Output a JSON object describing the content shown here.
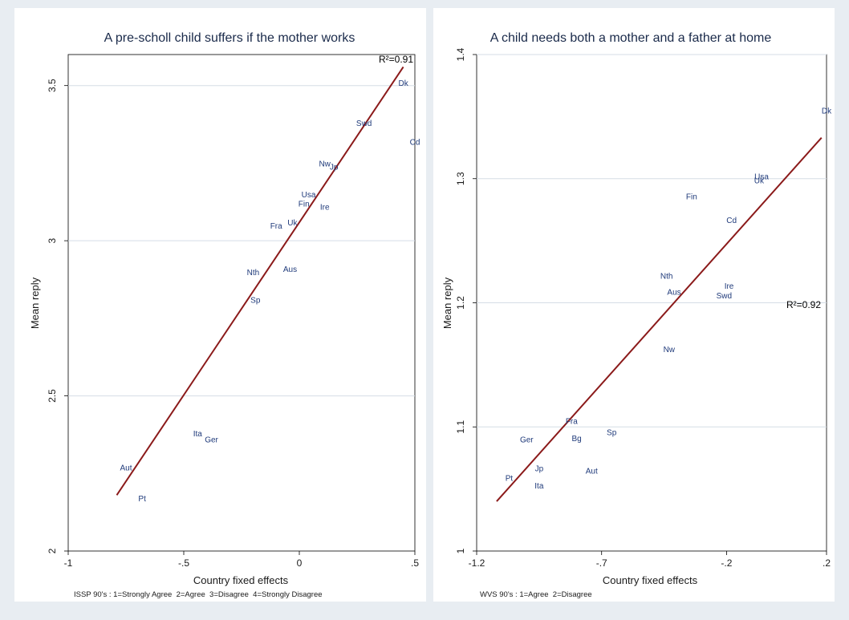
{
  "chart_data": [
    {
      "type": "scatter",
      "title": "A pre-scholl child suffers if the mother works",
      "xlabel": "Country fixed effects",
      "ylabel": "Mean reply",
      "note": "ISSP 90's : 1=Strongly Agree  2=Agree  3=Disagree  4=Strongly Disagree",
      "r2_label": "R²=0.91",
      "xlim": [
        -1.0,
        0.5
      ],
      "ylim": [
        2.0,
        3.6
      ],
      "xticks": [
        {
          "v": -1,
          "label": "-1"
        },
        {
          "v": -0.5,
          "label": "-.5"
        },
        {
          "v": 0,
          "label": "0"
        },
        {
          "v": 0.5,
          "label": ".5"
        }
      ],
      "yticks": [
        {
          "v": 2,
          "label": "2"
        },
        {
          "v": 2.5,
          "label": "2.5"
        },
        {
          "v": 3,
          "label": "3"
        },
        {
          "v": 3.5,
          "label": "3.5"
        }
      ],
      "points": [
        {
          "label": "Dk",
          "x": 0.45,
          "y": 3.51
        },
        {
          "label": "Swd",
          "x": 0.28,
          "y": 3.38
        },
        {
          "label": "Cd",
          "x": 0.5,
          "y": 3.32
        },
        {
          "label": "Nw",
          "x": 0.11,
          "y": 3.25
        },
        {
          "label": "Jp",
          "x": 0.15,
          "y": 3.24
        },
        {
          "label": "Usa",
          "x": 0.04,
          "y": 3.15
        },
        {
          "label": "Fin",
          "x": 0.02,
          "y": 3.12
        },
        {
          "label": "Ire",
          "x": 0.11,
          "y": 3.11
        },
        {
          "label": "Uk",
          "x": -0.03,
          "y": 3.06
        },
        {
          "label": "Fra",
          "x": -0.1,
          "y": 3.05
        },
        {
          "label": "Nth",
          "x": -0.2,
          "y": 2.9
        },
        {
          "label": "Aus",
          "x": -0.04,
          "y": 2.91
        },
        {
          "label": "Sp",
          "x": -0.19,
          "y": 2.81
        },
        {
          "label": "Ita",
          "x": -0.44,
          "y": 2.38
        },
        {
          "label": "Ger",
          "x": -0.38,
          "y": 2.36
        },
        {
          "label": "Aut",
          "x": -0.75,
          "y": 2.27
        },
        {
          "label": "Pt",
          "x": -0.68,
          "y": 2.17
        }
      ],
      "fit_line": {
        "x": [
          -0.79,
          0.45
        ],
        "y": [
          2.18,
          3.56
        ]
      },
      "colors": {
        "line": "#8b1a1a",
        "points": "#1f3a7a",
        "grid": "#d5dde6",
        "panel": "#ffffff"
      }
    },
    {
      "type": "scatter",
      "title": "A child needs both a mother and a father at home",
      "xlabel": "Country fixed effects",
      "ylabel": "Mean reply",
      "note": "WVS 90's : 1=Agree  2=Disagree",
      "r2_label": "R²=0.92",
      "xlim": [
        -1.2,
        0.2
      ],
      "ylim": [
        1.0,
        1.4
      ],
      "xticks": [
        {
          "v": -1.2,
          "label": "-1.2"
        },
        {
          "v": -0.7,
          "label": "-.7"
        },
        {
          "v": -0.2,
          "label": "-.2"
        },
        {
          "v": 0.2,
          "label": ".2"
        }
      ],
      "yticks": [
        {
          "v": 1.0,
          "label": "1"
        },
        {
          "v": 1.1,
          "label": "1.1"
        },
        {
          "v": 1.2,
          "label": "1.2"
        },
        {
          "v": 1.3,
          "label": "1.3"
        },
        {
          "v": 1.4,
          "label": "1.4"
        }
      ],
      "points": [
        {
          "label": "Dk",
          "x": 0.2,
          "y": 1.355
        },
        {
          "label": "Usa",
          "x": -0.06,
          "y": 1.302
        },
        {
          "label": "Uk",
          "x": -0.07,
          "y": 1.299
        },
        {
          "label": "Fin",
          "x": -0.34,
          "y": 1.286
        },
        {
          "label": "Cd",
          "x": -0.18,
          "y": 1.267
        },
        {
          "label": "Nth",
          "x": -0.44,
          "y": 1.222
        },
        {
          "label": "Aus",
          "x": -0.41,
          "y": 1.209
        },
        {
          "label": "Ire",
          "x": -0.19,
          "y": 1.214
        },
        {
          "label": "Swd",
          "x": -0.21,
          "y": 1.206
        },
        {
          "label": "Nw",
          "x": -0.43,
          "y": 1.163
        },
        {
          "label": "Fra",
          "x": -0.82,
          "y": 1.105
        },
        {
          "label": "Sp",
          "x": -0.66,
          "y": 1.096
        },
        {
          "label": "Ger",
          "x": -1.0,
          "y": 1.09
        },
        {
          "label": "Bg",
          "x": -0.8,
          "y": 1.091
        },
        {
          "label": "Jp",
          "x": -0.95,
          "y": 1.067
        },
        {
          "label": "Aut",
          "x": -0.74,
          "y": 1.065
        },
        {
          "label": "Pt",
          "x": -1.07,
          "y": 1.059
        },
        {
          "label": "Ita",
          "x": -0.95,
          "y": 1.053
        }
      ],
      "fit_line": {
        "x": [
          -1.12,
          0.18
        ],
        "y": [
          1.04,
          1.333
        ]
      },
      "colors": {
        "line": "#8b1a1a",
        "points": "#1f3a7a",
        "grid": "#d5dde6",
        "panel": "#ffffff"
      }
    }
  ]
}
